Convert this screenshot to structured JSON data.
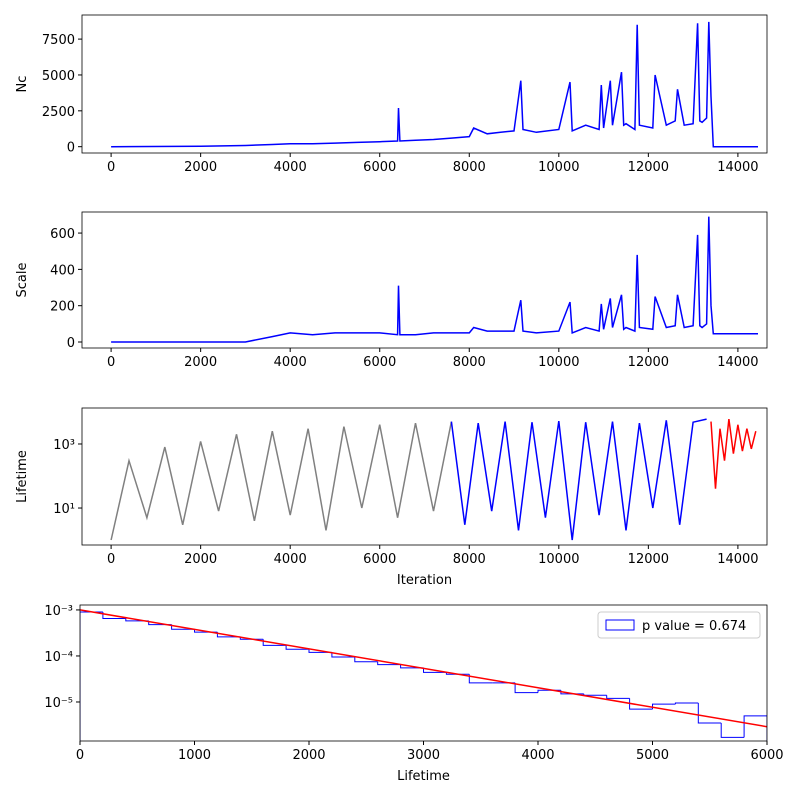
{
  "chart_data": [
    {
      "type": "line",
      "y_label": "Nc",
      "xlim": [
        -650,
        14650
      ],
      "xticks": [
        0,
        2000,
        4000,
        6000,
        8000,
        10000,
        12000,
        14000
      ],
      "ylim": [
        -440,
        9180
      ],
      "yticks": [
        0,
        2500,
        5000,
        7500
      ],
      "log": false,
      "series": [
        {
          "color": "#0000ff",
          "x": [
            0,
            2000,
            3000,
            3600,
            4000,
            4500,
            5000,
            5500,
            6000,
            6400,
            6420,
            6450,
            6800,
            7200,
            7600,
            8000,
            8100,
            8400,
            8700,
            9000,
            9150,
            9200,
            9500,
            10000,
            10250,
            10300,
            10600,
            10900,
            10950,
            11000,
            11150,
            11200,
            11400,
            11450,
            11500,
            11700,
            11750,
            11800,
            12100,
            12150,
            12400,
            12600,
            12650,
            12800,
            13000,
            13100,
            13150,
            13200,
            13300,
            13350,
            13400,
            13450,
            14450
          ],
          "values": [
            0,
            30,
            80,
            150,
            200,
            200,
            250,
            300,
            350,
            400,
            2700,
            400,
            450,
            500,
            600,
            700,
            1300,
            900,
            1000,
            1100,
            4600,
            1200,
            1000,
            1200,
            4500,
            1100,
            1500,
            1200,
            4300,
            1300,
            4600,
            1500,
            5200,
            1500,
            1600,
            1200,
            8500,
            1500,
            1300,
            5000,
            1500,
            1800,
            4000,
            1500,
            1600,
            8600,
            1800,
            1700,
            2000,
            8700,
            3500,
            0,
            0
          ]
        }
      ]
    },
    {
      "type": "line",
      "y_label": "Scale",
      "xlim": [
        -650,
        14650
      ],
      "xticks": [
        0,
        2000,
        4000,
        6000,
        8000,
        10000,
        12000,
        14000
      ],
      "ylim": [
        -33,
        716
      ],
      "yticks": [
        0,
        200,
        400,
        600
      ],
      "log": false,
      "series": [
        {
          "color": "#0000ff",
          "x": [
            0,
            2000,
            3000,
            3600,
            4000,
            4500,
            5000,
            5500,
            6000,
            6400,
            6420,
            6450,
            6800,
            7200,
            7600,
            8000,
            8100,
            8400,
            8700,
            9000,
            9150,
            9200,
            9500,
            10000,
            10250,
            10300,
            10600,
            10900,
            10950,
            11000,
            11150,
            11200,
            11400,
            11450,
            11500,
            11700,
            11750,
            11800,
            12100,
            12150,
            12400,
            12600,
            12650,
            12800,
            13000,
            13100,
            13150,
            13200,
            13300,
            13350,
            13400,
            13450,
            14450
          ],
          "values": [
            0,
            0,
            0,
            30,
            50,
            40,
            50,
            50,
            50,
            40,
            310,
            40,
            40,
            50,
            50,
            50,
            80,
            60,
            60,
            60,
            230,
            60,
            50,
            60,
            220,
            50,
            80,
            60,
            210,
            70,
            240,
            80,
            260,
            70,
            80,
            60,
            480,
            80,
            70,
            250,
            80,
            90,
            260,
            80,
            90,
            590,
            90,
            80,
            100,
            690,
            200,
            45,
            45
          ]
        }
      ]
    },
    {
      "type": "line",
      "y_label": "Lifetime",
      "x_label": "Iteration",
      "xlim": [
        -650,
        14650
      ],
      "xticks": [
        0,
        2000,
        4000,
        6000,
        8000,
        10000,
        12000,
        14000
      ],
      "ylim": [
        0.7,
        13300
      ],
      "yticks": [
        {
          "value": 10,
          "label": "10¹"
        },
        {
          "value": 1000,
          "label": "10³"
        }
      ],
      "log": true,
      "series": [
        {
          "color": "#808080",
          "x": [
            0,
            400,
            800,
            1200,
            1600,
            2000,
            2400,
            2800,
            3200,
            3600,
            4000,
            4400,
            4800,
            5200,
            5600,
            6000,
            6400,
            6800,
            7200,
            7600
          ],
          "values": [
            1,
            300,
            5,
            800,
            3,
            1200,
            8,
            2000,
            4,
            2500,
            6,
            3000,
            2,
            3500,
            10,
            4000,
            5,
            4500,
            8,
            5000
          ]
        },
        {
          "color": "#0000ff",
          "x": [
            7600,
            7900,
            8200,
            8500,
            8800,
            9100,
            9400,
            9700,
            10000,
            10300,
            10600,
            10900,
            11200,
            11500,
            11800,
            12100,
            12400,
            12700,
            13000,
            13300
          ],
          "values": [
            5000,
            3,
            4500,
            8,
            5000,
            2,
            4800,
            5,
            5200,
            1,
            4800,
            6,
            5000,
            2,
            4500,
            10,
            5500,
            3,
            4800,
            6000
          ]
        },
        {
          "color": "#ff0000",
          "x": [
            13400,
            13500,
            13600,
            13700,
            13800,
            13900,
            14000,
            14100,
            14200,
            14300,
            14400
          ],
          "values": [
            5000,
            40,
            3000,
            300,
            6000,
            500,
            4000,
            600,
            3000,
            700,
            2500
          ]
        }
      ]
    },
    {
      "type": "histogram",
      "x_label": "Lifetime",
      "xlim": [
        0,
        6000
      ],
      "xticks": [
        0,
        1000,
        2000,
        3000,
        4000,
        5000,
        6000
      ],
      "ylim": [
        1.42e-06,
        0.00128
      ],
      "log": true,
      "yticks": [
        {
          "value": 1e-05,
          "label": "10⁻⁵"
        },
        {
          "value": 0.0001,
          "label": "10⁻⁴"
        },
        {
          "value": 0.001,
          "label": "10⁻³"
        }
      ],
      "legend": "upper right",
      "bins": [
        0,
        200,
        400,
        600,
        800,
        1000,
        1200,
        1400,
        1600,
        1800,
        2000,
        2200,
        2400,
        2600,
        2800,
        3000,
        3200,
        3400,
        3600,
        3800,
        4000,
        4200,
        4400,
        4600,
        4800,
        5000,
        5200,
        5400,
        5600,
        5800,
        6000
      ],
      "series": [
        {
          "name": "p value = 0.674",
          "color": "#0000ff",
          "values": [
            0.0009,
            0.00065,
            0.00058,
            0.00048,
            0.00038,
            0.00033,
            0.00026,
            0.00023,
            0.00017,
            0.00014,
            0.00012,
            9.5e-05,
            7.5e-05,
            6.5e-05,
            5.5e-05,
            4.4e-05,
            4e-05,
            2.6e-05,
            2.6e-05,
            1.6e-05,
            1.8e-05,
            1.5e-05,
            1.4e-05,
            1.2e-05,
            7e-06,
            9e-06,
            9.5e-06,
            3.5e-06,
            1.7e-06,
            5e-06
          ]
        }
      ],
      "fit": {
        "color": "#ff0000",
        "x": [
          0,
          6000
        ],
        "values": [
          0.001,
          2.9e-06
        ]
      }
    }
  ]
}
